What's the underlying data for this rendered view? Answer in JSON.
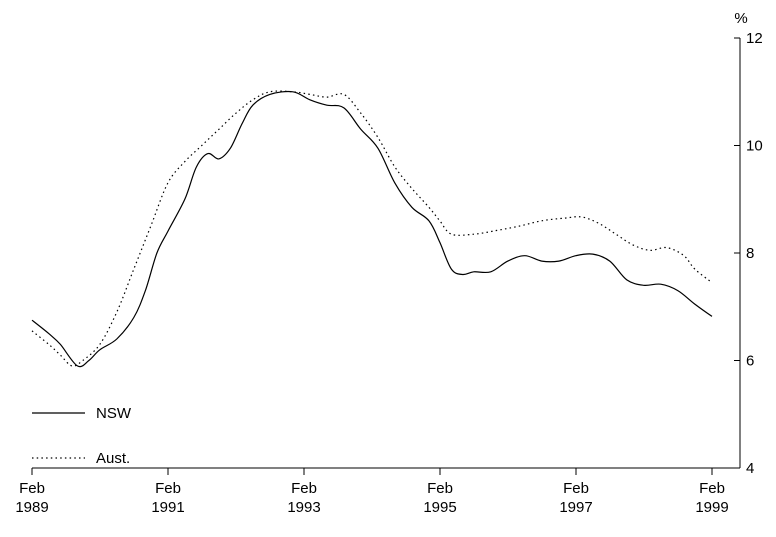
{
  "chart_data": {
    "type": "line",
    "title": "",
    "xlabel": "",
    "ylabel": "%",
    "xlim": [
      1989.083,
      1999.083
    ],
    "ylim": [
      4,
      12
    ],
    "x_ticks": [
      {
        "x": 1989.083,
        "line1": "Feb",
        "line2": "1989"
      },
      {
        "x": 1991.083,
        "line1": "Feb",
        "line2": "1991"
      },
      {
        "x": 1993.083,
        "line1": "Feb",
        "line2": "1993"
      },
      {
        "x": 1995.083,
        "line1": "Feb",
        "line2": "1995"
      },
      {
        "x": 1997.083,
        "line1": "Feb",
        "line2": "1997"
      },
      {
        "x": 1999.083,
        "line1": "Feb",
        "line2": "1999"
      }
    ],
    "y_ticks": [
      {
        "y": 4,
        "label": "4"
      },
      {
        "y": 6,
        "label": "6"
      },
      {
        "y": 8,
        "label": "8"
      },
      {
        "y": 10,
        "label": "10"
      },
      {
        "y": 12,
        "label": "12"
      }
    ],
    "grid": false,
    "legend_position": "bottom-left",
    "series": [
      {
        "name": "NSW",
        "style": "solid",
        "color": "#000000",
        "points": [
          [
            1989.083,
            6.75
          ],
          [
            1989.33,
            6.5
          ],
          [
            1989.5,
            6.3
          ],
          [
            1989.75,
            5.9
          ],
          [
            1989.92,
            6.0
          ],
          [
            1990.08,
            6.2
          ],
          [
            1990.33,
            6.4
          ],
          [
            1990.58,
            6.8
          ],
          [
            1990.75,
            7.3
          ],
          [
            1990.92,
            8.0
          ],
          [
            1991.08,
            8.4
          ],
          [
            1991.33,
            9.0
          ],
          [
            1991.5,
            9.6
          ],
          [
            1991.67,
            9.85
          ],
          [
            1991.83,
            9.75
          ],
          [
            1992.0,
            9.95
          ],
          [
            1992.17,
            10.4
          ],
          [
            1992.33,
            10.75
          ],
          [
            1992.58,
            10.95
          ],
          [
            1992.92,
            11.0
          ],
          [
            1993.17,
            10.85
          ],
          [
            1993.42,
            10.75
          ],
          [
            1993.67,
            10.7
          ],
          [
            1993.92,
            10.3
          ],
          [
            1994.17,
            9.95
          ],
          [
            1994.42,
            9.3
          ],
          [
            1994.67,
            8.85
          ],
          [
            1994.92,
            8.6
          ],
          [
            1995.08,
            8.2
          ],
          [
            1995.25,
            7.7
          ],
          [
            1995.42,
            7.6
          ],
          [
            1995.58,
            7.65
          ],
          [
            1995.83,
            7.65
          ],
          [
            1996.08,
            7.85
          ],
          [
            1996.33,
            7.95
          ],
          [
            1996.58,
            7.85
          ],
          [
            1996.83,
            7.85
          ],
          [
            1997.08,
            7.95
          ],
          [
            1997.33,
            7.98
          ],
          [
            1997.58,
            7.85
          ],
          [
            1997.83,
            7.5
          ],
          [
            1998.08,
            7.4
          ],
          [
            1998.33,
            7.42
          ],
          [
            1998.58,
            7.3
          ],
          [
            1998.83,
            7.05
          ],
          [
            1999.083,
            6.82
          ]
        ]
      },
      {
        "name": "Aust.",
        "style": "dotted",
        "color": "#000000",
        "points": [
          [
            1989.083,
            6.55
          ],
          [
            1989.33,
            6.3
          ],
          [
            1989.5,
            6.1
          ],
          [
            1989.67,
            5.9
          ],
          [
            1989.83,
            6.0
          ],
          [
            1990.08,
            6.3
          ],
          [
            1990.33,
            6.9
          ],
          [
            1990.58,
            7.7
          ],
          [
            1990.83,
            8.5
          ],
          [
            1991.08,
            9.3
          ],
          [
            1991.33,
            9.7
          ],
          [
            1991.58,
            10.0
          ],
          [
            1991.83,
            10.3
          ],
          [
            1992.08,
            10.6
          ],
          [
            1992.33,
            10.85
          ],
          [
            1992.58,
            11.0
          ],
          [
            1992.92,
            11.0
          ],
          [
            1993.17,
            10.95
          ],
          [
            1993.42,
            10.9
          ],
          [
            1993.67,
            10.95
          ],
          [
            1993.92,
            10.6
          ],
          [
            1994.17,
            10.15
          ],
          [
            1994.42,
            9.6
          ],
          [
            1994.67,
            9.2
          ],
          [
            1994.92,
            8.85
          ],
          [
            1995.08,
            8.6
          ],
          [
            1995.25,
            8.35
          ],
          [
            1995.58,
            8.35
          ],
          [
            1995.92,
            8.42
          ],
          [
            1996.25,
            8.5
          ],
          [
            1996.58,
            8.6
          ],
          [
            1996.92,
            8.65
          ],
          [
            1997.17,
            8.67
          ],
          [
            1997.42,
            8.55
          ],
          [
            1997.67,
            8.35
          ],
          [
            1997.92,
            8.15
          ],
          [
            1998.17,
            8.05
          ],
          [
            1998.42,
            8.1
          ],
          [
            1998.67,
            7.95
          ],
          [
            1998.83,
            7.7
          ],
          [
            1999.083,
            7.45
          ]
        ]
      }
    ],
    "legend": [
      {
        "label": "NSW",
        "style": "solid"
      },
      {
        "label": "Aust.",
        "style": "dotted"
      }
    ]
  }
}
